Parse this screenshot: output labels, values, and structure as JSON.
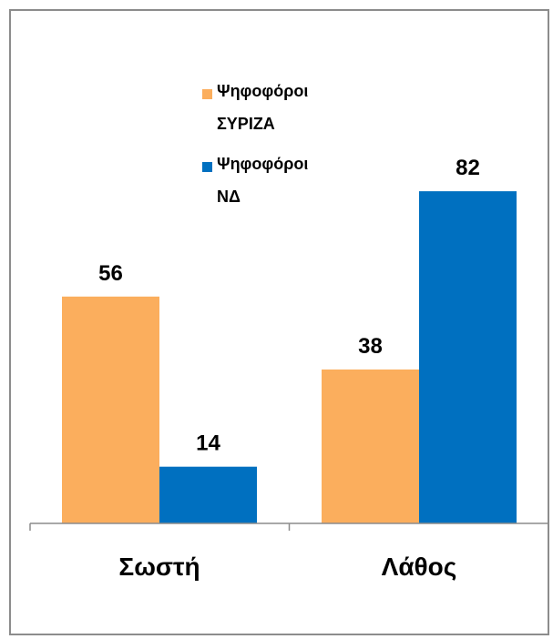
{
  "chart_data": {
    "type": "bar",
    "categories": [
      "Σωστή",
      "Λάθος"
    ],
    "series": [
      {
        "name_lines": [
          "Ψηφοφόροι",
          "ΣΥΡΙΖΑ"
        ],
        "color": "#FBAE5D",
        "values": [
          56,
          38
        ]
      },
      {
        "name_lines": [
          "Ψηφοφόροι",
          "ΝΔ"
        ],
        "color": "#0070C0",
        "values": [
          14,
          82
        ]
      }
    ],
    "ylim": [
      0,
      90
    ],
    "grid": false,
    "legend": "top-center",
    "data_labels": true
  }
}
